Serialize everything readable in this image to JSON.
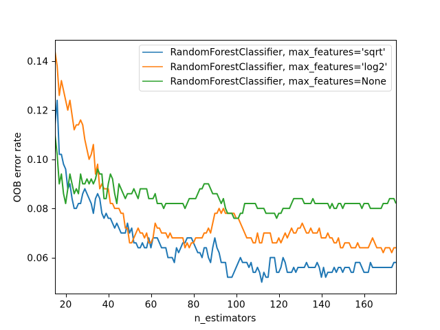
{
  "chart_data": {
    "type": "line",
    "title": "",
    "xlabel": "n_estimators",
    "ylabel": "OOB error rate",
    "xlim": [
      15,
      175
    ],
    "ylim": [
      0.0453,
      0.1487
    ],
    "xticks": [
      20,
      40,
      60,
      80,
      100,
      120,
      140,
      160
    ],
    "xtick_labels": [
      "20",
      "40",
      "60",
      "80",
      "100",
      "120",
      "140",
      "160"
    ],
    "yticks": [
      0.06,
      0.08,
      0.1,
      0.12,
      0.14
    ],
    "ytick_labels": [
      "0.06",
      "0.08",
      "0.10",
      "0.12",
      "0.14"
    ],
    "grid": false,
    "legend_position": "upper right",
    "background": "#ffffff",
    "axis_color": "#000000",
    "x": [
      15,
      16,
      17,
      18,
      19,
      20,
      21,
      22,
      23,
      24,
      25,
      26,
      27,
      28,
      29,
      30,
      31,
      32,
      33,
      34,
      35,
      36,
      37,
      38,
      39,
      40,
      41,
      42,
      43,
      44,
      45,
      46,
      47,
      48,
      49,
      50,
      51,
      52,
      53,
      54,
      55,
      56,
      57,
      58,
      59,
      60,
      61,
      62,
      63,
      64,
      65,
      66,
      67,
      68,
      69,
      70,
      71,
      72,
      73,
      74,
      75,
      76,
      77,
      78,
      79,
      80,
      81,
      82,
      83,
      84,
      85,
      86,
      87,
      88,
      89,
      90,
      91,
      92,
      93,
      94,
      95,
      96,
      97,
      98,
      99,
      100,
      101,
      102,
      103,
      104,
      105,
      106,
      107,
      108,
      109,
      110,
      111,
      112,
      113,
      114,
      115,
      116,
      117,
      118,
      119,
      120,
      121,
      122,
      123,
      124,
      125,
      126,
      127,
      128,
      129,
      130,
      131,
      132,
      133,
      134,
      135,
      136,
      137,
      138,
      139,
      140,
      141,
      142,
      143,
      144,
      145,
      146,
      147,
      148,
      149,
      150,
      151,
      152,
      153,
      154,
      155,
      156,
      157,
      158,
      159,
      160,
      161,
      162,
      163,
      164,
      165,
      166,
      167,
      168,
      169,
      170,
      171,
      172,
      173,
      174,
      175
    ],
    "series": [
      {
        "name": "RandomForestClassifier, max_features='sqrt'",
        "color": "#1f77b4",
        "values": [
          0.114,
          0.124,
          0.102,
          0.102,
          0.098,
          0.096,
          0.088,
          0.09,
          0.084,
          0.08,
          0.08,
          0.082,
          0.082,
          0.086,
          0.088,
          0.086,
          0.084,
          0.082,
          0.078,
          0.084,
          0.086,
          0.084,
          0.078,
          0.076,
          0.078,
          0.076,
          0.076,
          0.074,
          0.072,
          0.074,
          0.072,
          0.07,
          0.07,
          0.07,
          0.074,
          0.07,
          0.072,
          0.066,
          0.066,
          0.064,
          0.064,
          0.066,
          0.064,
          0.064,
          0.068,
          0.064,
          0.068,
          0.068,
          0.068,
          0.066,
          0.064,
          0.064,
          0.064,
          0.06,
          0.06,
          0.06,
          0.058,
          0.064,
          0.062,
          0.064,
          0.066,
          0.066,
          0.068,
          0.068,
          0.068,
          0.066,
          0.064,
          0.062,
          0.062,
          0.06,
          0.064,
          0.064,
          0.06,
          0.058,
          0.064,
          0.068,
          0.064,
          0.062,
          0.058,
          0.058,
          0.058,
          0.052,
          0.052,
          0.052,
          0.054,
          0.056,
          0.058,
          0.06,
          0.058,
          0.058,
          0.058,
          0.056,
          0.058,
          0.054,
          0.054,
          0.056,
          0.054,
          0.05,
          0.054,
          0.052,
          0.052,
          0.06,
          0.06,
          0.06,
          0.054,
          0.054,
          0.056,
          0.06,
          0.058,
          0.054,
          0.054,
          0.054,
          0.056,
          0.054,
          0.056,
          0.056,
          0.056,
          0.056,
          0.058,
          0.056,
          0.056,
          0.056,
          0.056,
          0.058,
          0.056,
          0.052,
          0.056,
          0.052,
          0.054,
          0.054,
          0.054,
          0.056,
          0.054,
          0.056,
          0.056,
          0.054,
          0.056,
          0.056,
          0.056,
          0.054,
          0.054,
          0.058,
          0.058,
          0.058,
          0.056,
          0.054,
          0.054,
          0.054,
          0.058,
          0.056,
          0.056,
          0.056,
          0.056,
          0.056,
          0.056,
          0.056,
          0.056,
          0.056,
          0.056,
          0.058,
          0.058
        ]
      },
      {
        "name": "RandomForestClassifier, max_features='log2'",
        "color": "#ff7f0e",
        "values": [
          0.144,
          0.138,
          0.126,
          0.132,
          0.128,
          0.124,
          0.12,
          0.124,
          0.118,
          0.112,
          0.114,
          0.114,
          0.116,
          0.114,
          0.108,
          0.104,
          0.1,
          0.102,
          0.106,
          0.094,
          0.098,
          0.088,
          0.09,
          0.088,
          0.088,
          0.088,
          0.082,
          0.082,
          0.08,
          0.08,
          0.08,
          0.078,
          0.078,
          0.072,
          0.072,
          0.066,
          0.066,
          0.068,
          0.07,
          0.072,
          0.07,
          0.07,
          0.068,
          0.07,
          0.066,
          0.066,
          0.068,
          0.074,
          0.072,
          0.072,
          0.07,
          0.07,
          0.07,
          0.068,
          0.07,
          0.068,
          0.068,
          0.068,
          0.068,
          0.068,
          0.068,
          0.064,
          0.066,
          0.064,
          0.066,
          0.066,
          0.068,
          0.068,
          0.068,
          0.068,
          0.07,
          0.07,
          0.072,
          0.07,
          0.074,
          0.078,
          0.078,
          0.08,
          0.078,
          0.08,
          0.078,
          0.078,
          0.078,
          0.078,
          0.078,
          0.076,
          0.076,
          0.074,
          0.072,
          0.07,
          0.068,
          0.068,
          0.068,
          0.066,
          0.066,
          0.07,
          0.066,
          0.066,
          0.07,
          0.07,
          0.07,
          0.07,
          0.066,
          0.066,
          0.066,
          0.068,
          0.066,
          0.068,
          0.07,
          0.068,
          0.07,
          0.072,
          0.07,
          0.07,
          0.072,
          0.072,
          0.074,
          0.072,
          0.07,
          0.07,
          0.072,
          0.07,
          0.07,
          0.07,
          0.072,
          0.068,
          0.068,
          0.068,
          0.07,
          0.068,
          0.068,
          0.066,
          0.066,
          0.068,
          0.064,
          0.064,
          0.066,
          0.066,
          0.066,
          0.064,
          0.064,
          0.064,
          0.066,
          0.064,
          0.064,
          0.064,
          0.064,
          0.064,
          0.066,
          0.068,
          0.066,
          0.064,
          0.064,
          0.064,
          0.062,
          0.064,
          0.064,
          0.064,
          0.062,
          0.064,
          0.064
        ]
      },
      {
        "name": "RandomForestClassifier, max_features=None",
        "color": "#2ca02c",
        "values": [
          0.11,
          0.102,
          0.09,
          0.094,
          0.086,
          0.082,
          0.088,
          0.094,
          0.09,
          0.086,
          0.088,
          0.086,
          0.094,
          0.09,
          0.09,
          0.092,
          0.09,
          0.092,
          0.09,
          0.092,
          0.096,
          0.094,
          0.094,
          0.084,
          0.084,
          0.09,
          0.094,
          0.092,
          0.086,
          0.082,
          0.09,
          0.088,
          0.086,
          0.084,
          0.086,
          0.086,
          0.086,
          0.088,
          0.086,
          0.084,
          0.088,
          0.088,
          0.088,
          0.088,
          0.084,
          0.084,
          0.084,
          0.086,
          0.082,
          0.082,
          0.082,
          0.08,
          0.082,
          0.082,
          0.082,
          0.082,
          0.082,
          0.082,
          0.082,
          0.082,
          0.082,
          0.08,
          0.082,
          0.084,
          0.084,
          0.084,
          0.084,
          0.086,
          0.088,
          0.088,
          0.09,
          0.09,
          0.09,
          0.088,
          0.086,
          0.086,
          0.086,
          0.084,
          0.082,
          0.084,
          0.08,
          0.078,
          0.078,
          0.078,
          0.076,
          0.076,
          0.076,
          0.078,
          0.078,
          0.082,
          0.082,
          0.082,
          0.082,
          0.082,
          0.082,
          0.08,
          0.08,
          0.08,
          0.08,
          0.078,
          0.078,
          0.078,
          0.078,
          0.078,
          0.076,
          0.078,
          0.078,
          0.08,
          0.08,
          0.08,
          0.08,
          0.082,
          0.084,
          0.084,
          0.084,
          0.084,
          0.084,
          0.082,
          0.082,
          0.082,
          0.082,
          0.084,
          0.082,
          0.082,
          0.082,
          0.082,
          0.082,
          0.082,
          0.082,
          0.08,
          0.082,
          0.08,
          0.08,
          0.082,
          0.082,
          0.08,
          0.082,
          0.082,
          0.082,
          0.082,
          0.082,
          0.082,
          0.082,
          0.082,
          0.08,
          0.082,
          0.082,
          0.082,
          0.08,
          0.08,
          0.08,
          0.08,
          0.08,
          0.08,
          0.082,
          0.082,
          0.082,
          0.084,
          0.084,
          0.084,
          0.082
        ]
      }
    ]
  }
}
